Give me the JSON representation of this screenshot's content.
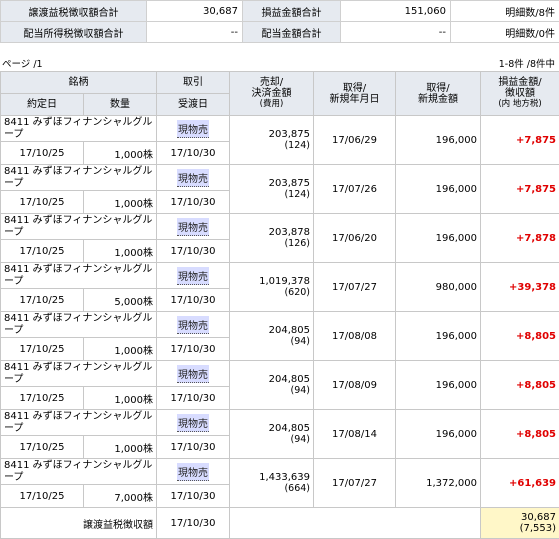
{
  "summary": {
    "row1": {
      "label1": "譲渡益税徴収額合計",
      "value1": "30,687",
      "label2": "損益金額合計",
      "value2": "151,060",
      "count": "明細数/8件"
    },
    "row2": {
      "label1": "配当所得税徴収額合計",
      "value1": "--",
      "label2": "配当金額合計",
      "value2": "--",
      "count": "明細数/0件"
    }
  },
  "pager": {
    "left": "ページ /1",
    "right": "1-8件 /8件中"
  },
  "headers": {
    "meigara": "銘柄",
    "torihiki": "取引",
    "baikyaku": "売却/",
    "kessai": "決済金額",
    "hiyou": "(費用)",
    "shutoku1": "取得/",
    "shutoku2": "新規年月日",
    "shutoku3": "取得/",
    "shutoku4": "新規金額",
    "soneki1": "損益金額/",
    "soneki2": "徴収額",
    "soneki3": "(内 地方税)",
    "yakujo": "約定日",
    "suryo": "数量",
    "ukewatashi": "受渡日"
  },
  "rows": [
    {
      "name": "8411 みずほフィナンシャルグループ",
      "trade": "現物売",
      "amount": "203,875",
      "fee": "(124)",
      "acq_date": "17/06/29",
      "acq_amount": "196,000",
      "profit": "+7,875",
      "contract": "17/10/25",
      "qty": "1,000株",
      "delivery": "17/10/30"
    },
    {
      "name": "8411 みずほフィナンシャルグループ",
      "trade": "現物売",
      "amount": "203,875",
      "fee": "(124)",
      "acq_date": "17/07/26",
      "acq_amount": "196,000",
      "profit": "+7,875",
      "contract": "17/10/25",
      "qty": "1,000株",
      "delivery": "17/10/30"
    },
    {
      "name": "8411 みずほフィナンシャルグループ",
      "trade": "現物売",
      "amount": "203,878",
      "fee": "(126)",
      "acq_date": "17/06/20",
      "acq_amount": "196,000",
      "profit": "+7,878",
      "contract": "17/10/25",
      "qty": "1,000株",
      "delivery": "17/10/30"
    },
    {
      "name": "8411 みずほフィナンシャルグループ",
      "trade": "現物売",
      "amount": "1,019,378",
      "fee": "(620)",
      "acq_date": "17/07/27",
      "acq_amount": "980,000",
      "profit": "+39,378",
      "contract": "17/10/25",
      "qty": "5,000株",
      "delivery": "17/10/30"
    },
    {
      "name": "8411 みずほフィナンシャルグループ",
      "trade": "現物売",
      "amount": "204,805",
      "fee": "(94)",
      "acq_date": "17/08/08",
      "acq_amount": "196,000",
      "profit": "+8,805",
      "contract": "17/10/25",
      "qty": "1,000株",
      "delivery": "17/10/30"
    },
    {
      "name": "8411 みずほフィナンシャルグループ",
      "trade": "現物売",
      "amount": "204,805",
      "fee": "(94)",
      "acq_date": "17/08/09",
      "acq_amount": "196,000",
      "profit": "+8,805",
      "contract": "17/10/25",
      "qty": "1,000株",
      "delivery": "17/10/30"
    },
    {
      "name": "8411 みずほフィナンシャルグループ",
      "trade": "現物売",
      "amount": "204,805",
      "fee": "(94)",
      "acq_date": "17/08/14",
      "acq_amount": "196,000",
      "profit": "+8,805",
      "contract": "17/10/25",
      "qty": "1,000株",
      "delivery": "17/10/30"
    },
    {
      "name": "8411 みずほフィナンシャルグループ",
      "trade": "現物売",
      "amount": "1,433,639",
      "fee": "(664)",
      "acq_date": "17/07/27",
      "acq_amount": "1,372,000",
      "profit": "+61,639",
      "contract": "17/10/25",
      "qty": "7,000株",
      "delivery": "17/10/30"
    }
  ],
  "footer": {
    "label": "譲渡益税徴収額",
    "date": "17/10/30",
    "tax": "30,687",
    "local": "(7,553)"
  }
}
